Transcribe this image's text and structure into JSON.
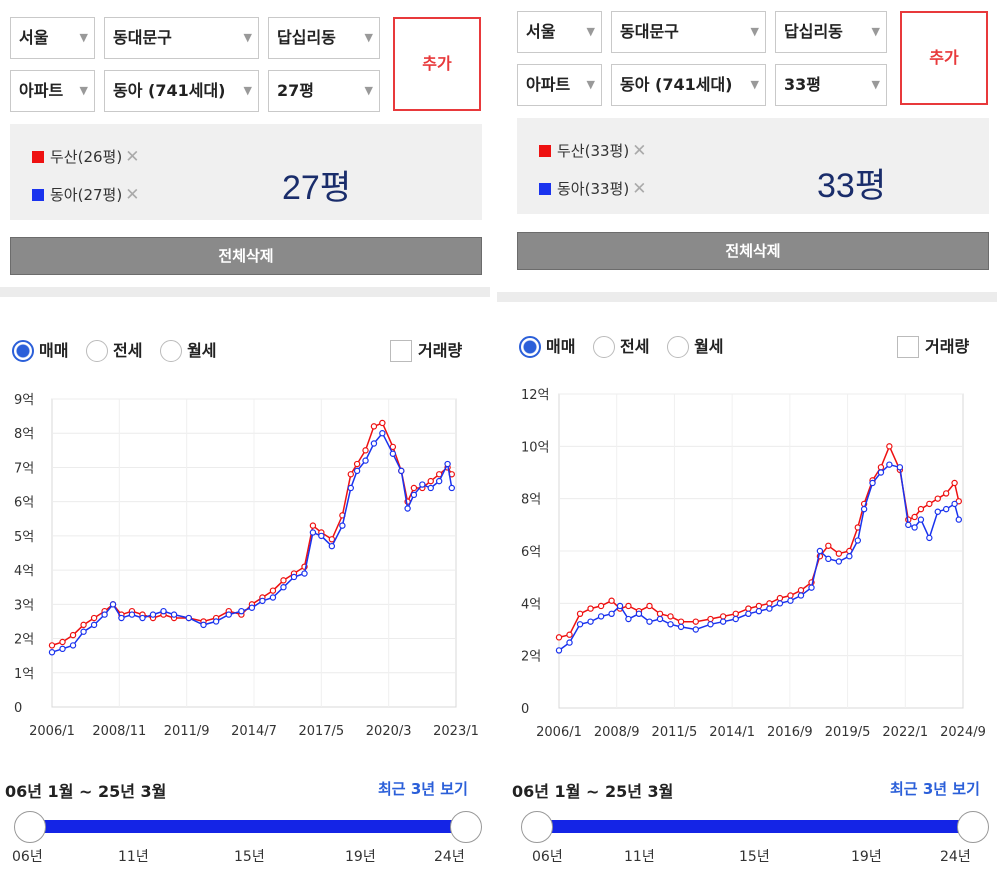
{
  "panels": [
    {
      "selects": {
        "city": "서울",
        "district": "동대문구",
        "dong": "답십리동",
        "type": "아파트",
        "complex": "동아 (741세대)",
        "size": "27평"
      },
      "add_label": "추가",
      "legend": [
        {
          "label": "두산(26평)",
          "color": "#ee1111"
        },
        {
          "label": "동아(27평)",
          "color": "#1a33ee"
        }
      ],
      "remove_icon": "close-icon",
      "big_title": "27평",
      "delete_all_label": "전체삭제",
      "radios": [
        "매매",
        "전세",
        "월세"
      ],
      "selected_radio": "매매",
      "volume_label": "거래량",
      "range_text": "06년 1월 ~ 25년 3월",
      "recent_label": "최근 3년 보기",
      "slider_labels": [
        "06년",
        "11년",
        "15년",
        "19년",
        "24년"
      ],
      "slider_range": [
        0,
        1
      ]
    },
    {
      "selects": {
        "city": "서울",
        "district": "동대문구",
        "dong": "답십리동",
        "type": "아파트",
        "complex": "동아 (741세대)",
        "size": "33평"
      },
      "add_label": "추가",
      "legend": [
        {
          "label": "두산(33평)",
          "color": "#ee1111"
        },
        {
          "label": "동아(33평)",
          "color": "#1a33ee"
        }
      ],
      "remove_icon": "close-icon",
      "big_title": "33평",
      "delete_all_label": "전체삭제",
      "radios": [
        "매매",
        "전세",
        "월세"
      ],
      "selected_radio": "매매",
      "volume_label": "거래량",
      "range_text": "06년 1월 ~ 25년 3월",
      "recent_label": "최근 3년 보기",
      "slider_labels": [
        "06년",
        "11년",
        "15년",
        "19년",
        "24년"
      ],
      "slider_range": [
        0,
        1
      ]
    }
  ],
  "chart_data": [
    {
      "type": "line",
      "title": "27평",
      "x_tick_labels": [
        "2006/1",
        "2008/11",
        "2011/9",
        "2014/7",
        "2017/5",
        "2020/3",
        "2023/1"
      ],
      "y_tick_labels": [
        "0",
        "1억",
        "2억",
        "3억",
        "4억",
        "5억",
        "6억",
        "7억",
        "8억",
        "9억"
      ],
      "ylim": [
        0,
        9
      ],
      "xlim": [
        2006.0,
        2025.2
      ],
      "y_unit": "억",
      "grid": true,
      "series": [
        {
          "name": "두산(26평)",
          "color": "#ee1111",
          "x": [
            2006.0,
            2006.5,
            2007.0,
            2007.5,
            2008.0,
            2008.5,
            2008.9,
            2009.3,
            2009.8,
            2010.3,
            2010.8,
            2011.3,
            2011.8,
            2012.5,
            2013.2,
            2013.8,
            2014.4,
            2015.0,
            2015.5,
            2016.0,
            2016.5,
            2017.0,
            2017.5,
            2018.0,
            2018.4,
            2018.8,
            2019.3,
            2019.8,
            2020.2,
            2020.5,
            2020.9,
            2021.3,
            2021.7,
            2022.2,
            2022.6,
            2022.9,
            2023.2,
            2023.6,
            2024.0,
            2024.4,
            2024.8,
            2025.0
          ],
          "y": [
            1.8,
            1.9,
            2.1,
            2.4,
            2.6,
            2.8,
            3.0,
            2.7,
            2.8,
            2.7,
            2.6,
            2.7,
            2.6,
            2.6,
            2.5,
            2.6,
            2.8,
            2.7,
            3.0,
            3.2,
            3.4,
            3.7,
            3.9,
            4.1,
            5.3,
            5.1,
            4.9,
            5.6,
            6.8,
            7.1,
            7.5,
            8.2,
            8.3,
            7.6,
            6.9,
            6.0,
            6.4,
            6.4,
            6.6,
            6.8,
            7.0,
            6.8
          ]
        },
        {
          "name": "동아(27평)",
          "color": "#1a33ee",
          "x": [
            2006.0,
            2006.5,
            2007.0,
            2007.5,
            2008.0,
            2008.5,
            2008.9,
            2009.3,
            2009.8,
            2010.3,
            2010.8,
            2011.3,
            2011.8,
            2012.5,
            2013.2,
            2013.8,
            2014.4,
            2015.0,
            2015.5,
            2016.0,
            2016.5,
            2017.0,
            2017.5,
            2018.0,
            2018.4,
            2018.8,
            2019.3,
            2019.8,
            2020.2,
            2020.5,
            2020.9,
            2021.3,
            2021.7,
            2022.2,
            2022.6,
            2022.9,
            2023.2,
            2023.6,
            2024.0,
            2024.4,
            2024.8,
            2025.0
          ],
          "y": [
            1.6,
            1.7,
            1.8,
            2.2,
            2.4,
            2.7,
            3.0,
            2.6,
            2.7,
            2.6,
            2.7,
            2.8,
            2.7,
            2.6,
            2.4,
            2.5,
            2.7,
            2.8,
            2.9,
            3.1,
            3.2,
            3.5,
            3.8,
            3.9,
            5.1,
            5.0,
            4.7,
            5.3,
            6.4,
            6.9,
            7.2,
            7.7,
            8.0,
            7.4,
            6.9,
            5.8,
            6.2,
            6.5,
            6.4,
            6.6,
            7.1,
            6.4
          ]
        }
      ]
    },
    {
      "type": "line",
      "title": "33평",
      "x_tick_labels": [
        "2006/1",
        "2008/9",
        "2011/5",
        "2014/1",
        "2016/9",
        "2019/5",
        "2022/1",
        "2024/9"
      ],
      "y_tick_labels": [
        "0",
        "2억",
        "4억",
        "6억",
        "8억",
        "10억",
        "12억"
      ],
      "ylim": [
        0,
        12
      ],
      "xlim": [
        2006.0,
        2025.2
      ],
      "y_unit": "억",
      "grid": true,
      "series": [
        {
          "name": "두산(33평)",
          "color": "#ee1111",
          "x": [
            2006.0,
            2006.5,
            2007.0,
            2007.5,
            2008.0,
            2008.5,
            2008.9,
            2009.3,
            2009.8,
            2010.3,
            2010.8,
            2011.3,
            2011.8,
            2012.5,
            2013.2,
            2013.8,
            2014.4,
            2015.0,
            2015.5,
            2016.0,
            2016.5,
            2017.0,
            2017.5,
            2018.0,
            2018.4,
            2018.8,
            2019.3,
            2019.8,
            2020.2,
            2020.5,
            2020.9,
            2021.3,
            2021.7,
            2022.2,
            2022.6,
            2022.9,
            2023.2,
            2023.6,
            2024.0,
            2024.4,
            2024.8,
            2025.0
          ],
          "y": [
            2.7,
            2.8,
            3.6,
            3.8,
            3.9,
            4.1,
            3.8,
            3.9,
            3.7,
            3.9,
            3.6,
            3.5,
            3.3,
            3.3,
            3.4,
            3.5,
            3.6,
            3.8,
            3.9,
            4.0,
            4.2,
            4.3,
            4.5,
            4.8,
            5.8,
            6.2,
            5.9,
            6.0,
            6.9,
            7.8,
            8.7,
            9.2,
            10.0,
            9.1,
            7.2,
            7.3,
            7.6,
            7.8,
            8.0,
            8.2,
            8.6,
            7.9
          ]
        },
        {
          "name": "동아(33평)",
          "color": "#1a33ee",
          "x": [
            2006.0,
            2006.5,
            2007.0,
            2007.5,
            2008.0,
            2008.5,
            2008.9,
            2009.3,
            2009.8,
            2010.3,
            2010.8,
            2011.3,
            2011.8,
            2012.5,
            2013.2,
            2013.8,
            2014.4,
            2015.0,
            2015.5,
            2016.0,
            2016.5,
            2017.0,
            2017.5,
            2018.0,
            2018.4,
            2018.8,
            2019.3,
            2019.8,
            2020.2,
            2020.5,
            2020.9,
            2021.3,
            2021.7,
            2022.2,
            2022.6,
            2022.9,
            2023.2,
            2023.6,
            2024.0,
            2024.4,
            2024.8,
            2025.0
          ],
          "y": [
            2.2,
            2.5,
            3.2,
            3.3,
            3.5,
            3.6,
            3.9,
            3.4,
            3.6,
            3.3,
            3.4,
            3.2,
            3.1,
            3.0,
            3.2,
            3.3,
            3.4,
            3.6,
            3.7,
            3.8,
            4.0,
            4.1,
            4.3,
            4.6,
            6.0,
            5.7,
            5.6,
            5.8,
            6.4,
            7.6,
            8.6,
            9.0,
            9.3,
            9.2,
            7.0,
            6.9,
            7.2,
            6.5,
            7.5,
            7.6,
            7.8,
            7.2
          ]
        }
      ]
    }
  ]
}
